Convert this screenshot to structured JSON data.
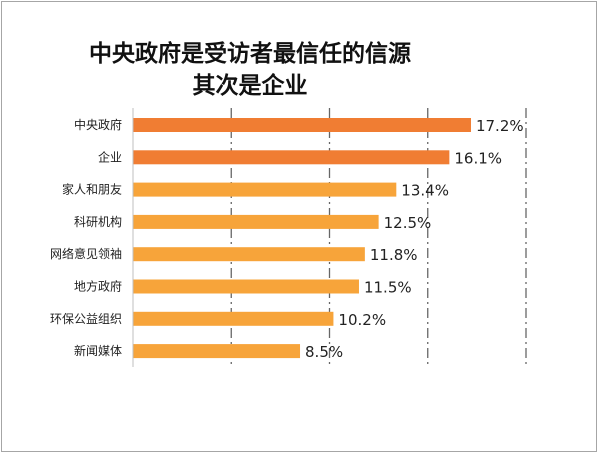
{
  "chart_data": {
    "type": "bar",
    "orientation": "horizontal",
    "title_lines": [
      "中央政府是受访者最信任的信源",
      "其次是企业"
    ],
    "categories": [
      "中央政府",
      "企业",
      "家人和朋友",
      "科研机构",
      "网络意见领袖",
      "地方政府",
      "环保公益组织",
      "新闻媒体"
    ],
    "values": [
      17.2,
      16.1,
      13.4,
      12.5,
      11.8,
      11.5,
      10.2,
      8.5
    ],
    "value_labels": [
      "17.2%",
      "16.1%",
      "13.4%",
      "12.5%",
      "11.8%",
      "11.5%",
      "10.2%",
      "8.5%"
    ],
    "unit": "%",
    "xlim": [
      0,
      20
    ],
    "grid": "vertical dashed",
    "colors": [
      "#f07d33",
      "#f07d33",
      "#f7a43a",
      "#f7a43a",
      "#f7a43a",
      "#f7a43a",
      "#f7a43a",
      "#f7a43a"
    ],
    "gridline_color": "#666666"
  }
}
